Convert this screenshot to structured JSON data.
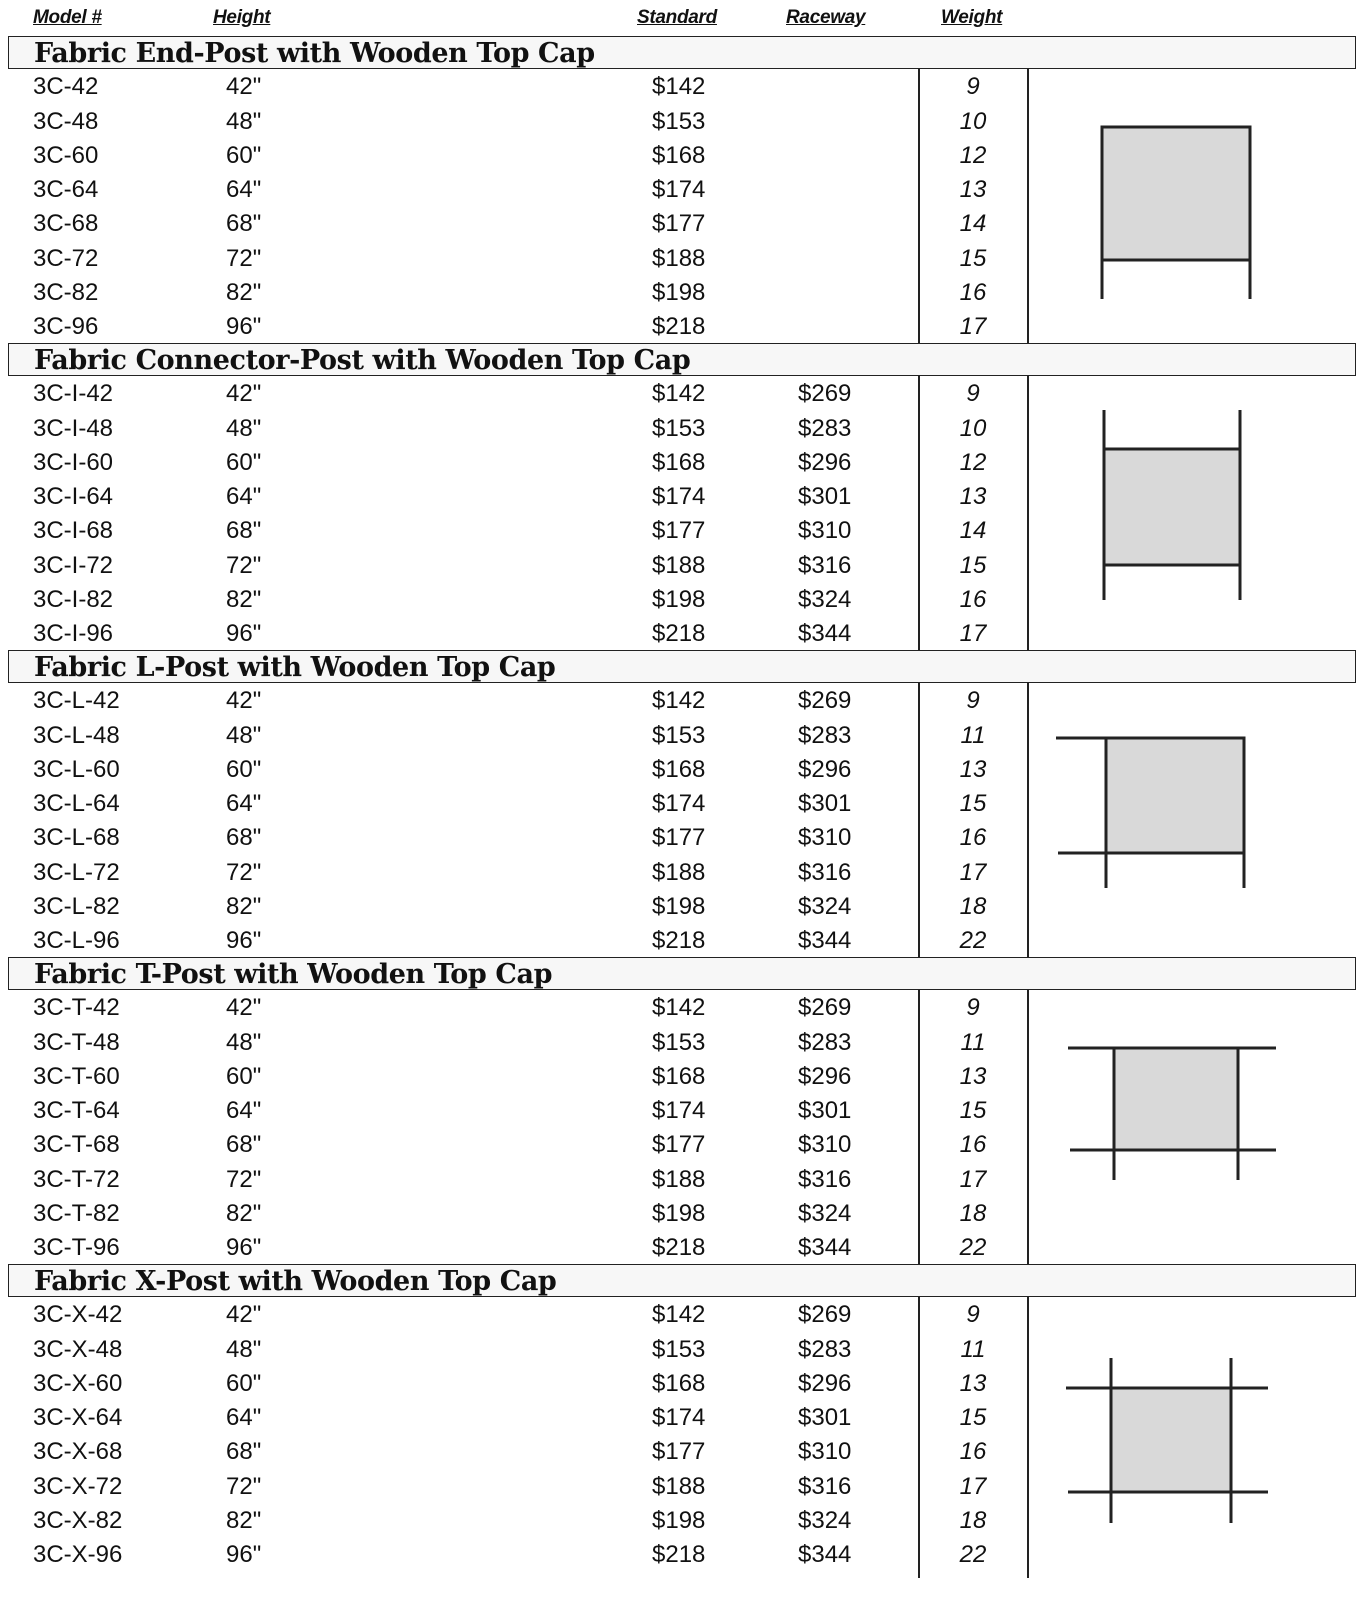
{
  "headers": {
    "model": "Model #",
    "height": "Height",
    "standard": "Standard",
    "raceway": "Raceway",
    "weight": "Weight"
  },
  "diagram_color": "#d9d9d9",
  "sections": [
    {
      "title": "Fabric End-Post with Wooden Top Cap",
      "diagram": "end-post-icon",
      "rows": [
        {
          "model": "3C-42",
          "height": "42\"",
          "standard": "$142",
          "raceway": "",
          "weight": "9"
        },
        {
          "model": "3C-48",
          "height": "48\"",
          "standard": "$153",
          "raceway": "",
          "weight": "10"
        },
        {
          "model": "3C-60",
          "height": "60\"",
          "standard": "$168",
          "raceway": "",
          "weight": "12"
        },
        {
          "model": "3C-64",
          "height": "64\"",
          "standard": "$174",
          "raceway": "",
          "weight": "13"
        },
        {
          "model": "3C-68",
          "height": "68\"",
          "standard": "$177",
          "raceway": "",
          "weight": "14"
        },
        {
          "model": "3C-72",
          "height": "72\"",
          "standard": "$188",
          "raceway": "",
          "weight": "15"
        },
        {
          "model": "3C-82",
          "height": "82\"",
          "standard": "$198",
          "raceway": "",
          "weight": "16"
        },
        {
          "model": "3C-96",
          "height": "96\"",
          "standard": "$218",
          "raceway": "",
          "weight": "17"
        }
      ]
    },
    {
      "title": "Fabric Connector-Post with Wooden Top Cap",
      "diagram": "connector-post-icon",
      "rows": [
        {
          "model": "3C-I-42",
          "height": "42\"",
          "standard": "$142",
          "raceway": "$269",
          "weight": "9"
        },
        {
          "model": "3C-I-48",
          "height": "48\"",
          "standard": "$153",
          "raceway": "$283",
          "weight": "10"
        },
        {
          "model": "3C-I-60",
          "height": "60\"",
          "standard": "$168",
          "raceway": "$296",
          "weight": "12"
        },
        {
          "model": "3C-I-64",
          "height": "64\"",
          "standard": "$174",
          "raceway": "$301",
          "weight": "13"
        },
        {
          "model": "3C-I-68",
          "height": "68\"",
          "standard": "$177",
          "raceway": "$310",
          "weight": "14"
        },
        {
          "model": "3C-I-72",
          "height": "72\"",
          "standard": "$188",
          "raceway": "$316",
          "weight": "15"
        },
        {
          "model": "3C-I-82",
          "height": "82\"",
          "standard": "$198",
          "raceway": "$324",
          "weight": "16"
        },
        {
          "model": "3C-I-96",
          "height": "96\"",
          "standard": "$218",
          "raceway": "$344",
          "weight": "17"
        }
      ]
    },
    {
      "title": "Fabric L-Post with Wooden Top Cap",
      "diagram": "l-post-icon",
      "rows": [
        {
          "model": "3C-L-42",
          "height": "42\"",
          "standard": "$142",
          "raceway": "$269",
          "weight": "9"
        },
        {
          "model": "3C-L-48",
          "height": "48\"",
          "standard": "$153",
          "raceway": "$283",
          "weight": "11"
        },
        {
          "model": "3C-L-60",
          "height": "60\"",
          "standard": "$168",
          "raceway": "$296",
          "weight": "13"
        },
        {
          "model": "3C-L-64",
          "height": "64\"",
          "standard": "$174",
          "raceway": "$301",
          "weight": "15"
        },
        {
          "model": "3C-L-68",
          "height": "68\"",
          "standard": "$177",
          "raceway": "$310",
          "weight": "16"
        },
        {
          "model": "3C-L-72",
          "height": "72\"",
          "standard": "$188",
          "raceway": "$316",
          "weight": "17"
        },
        {
          "model": "3C-L-82",
          "height": "82\"",
          "standard": "$198",
          "raceway": "$324",
          "weight": "18"
        },
        {
          "model": "3C-L-96",
          "height": "96\"",
          "standard": "$218",
          "raceway": "$344",
          "weight": "22"
        }
      ]
    },
    {
      "title": "Fabric T-Post with Wooden Top Cap",
      "diagram": "t-post-icon",
      "rows": [
        {
          "model": "3C-T-42",
          "height": "42\"",
          "standard": "$142",
          "raceway": "$269",
          "weight": "9"
        },
        {
          "model": "3C-T-48",
          "height": "48\"",
          "standard": "$153",
          "raceway": "$283",
          "weight": "11"
        },
        {
          "model": "3C-T-60",
          "height": "60\"",
          "standard": "$168",
          "raceway": "$296",
          "weight": "13"
        },
        {
          "model": "3C-T-64",
          "height": "64\"",
          "standard": "$174",
          "raceway": "$301",
          "weight": "15"
        },
        {
          "model": "3C-T-68",
          "height": "68\"",
          "standard": "$177",
          "raceway": "$310",
          "weight": "16"
        },
        {
          "model": "3C-T-72",
          "height": "72\"",
          "standard": "$188",
          "raceway": "$316",
          "weight": "17"
        },
        {
          "model": "3C-T-82",
          "height": "82\"",
          "standard": "$198",
          "raceway": "$324",
          "weight": "18"
        },
        {
          "model": "3C-T-96",
          "height": "96\"",
          "standard": "$218",
          "raceway": "$344",
          "weight": "22"
        }
      ]
    },
    {
      "title": "Fabric X-Post with Wooden Top Cap",
      "diagram": "x-post-icon",
      "rows": [
        {
          "model": "3C-X-42",
          "height": "42\"",
          "standard": "$142",
          "raceway": "$269",
          "weight": "9"
        },
        {
          "model": "3C-X-48",
          "height": "48\"",
          "standard": "$153",
          "raceway": "$283",
          "weight": "11"
        },
        {
          "model": "3C-X-60",
          "height": "60\"",
          "standard": "$168",
          "raceway": "$296",
          "weight": "13"
        },
        {
          "model": "3C-X-64",
          "height": "64\"",
          "standard": "$174",
          "raceway": "$301",
          "weight": "15"
        },
        {
          "model": "3C-X-68",
          "height": "68\"",
          "standard": "$177",
          "raceway": "$310",
          "weight": "16"
        },
        {
          "model": "3C-X-72",
          "height": "72\"",
          "standard": "$188",
          "raceway": "$316",
          "weight": "17"
        },
        {
          "model": "3C-X-82",
          "height": "82\"",
          "standard": "$198",
          "raceway": "$324",
          "weight": "18"
        },
        {
          "model": "3C-X-96",
          "height": "96\"",
          "standard": "$218",
          "raceway": "$344",
          "weight": "22"
        }
      ]
    }
  ]
}
